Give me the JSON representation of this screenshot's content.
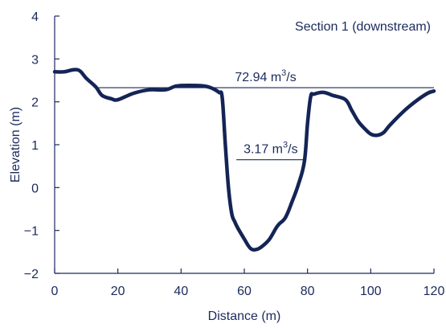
{
  "chart_data": {
    "type": "line",
    "title": "Section 1 (downstream)",
    "xlabel": "Distance (m)",
    "ylabel": "Elevation (m)",
    "xlim": [
      0,
      120
    ],
    "ylim": [
      -2,
      4
    ],
    "xticks": [
      0,
      20,
      40,
      60,
      80,
      100,
      120
    ],
    "yticks": [
      4,
      3,
      2,
      1,
      0,
      -1,
      -2
    ],
    "ytick_labels": [
      "4",
      "3",
      "2",
      "1",
      "0",
      "−1",
      "−2"
    ],
    "grid": false,
    "series": [
      {
        "x": [
          0,
          3,
          6,
          8,
          10,
          13,
          15,
          18,
          20,
          25,
          30,
          35,
          38,
          40,
          45,
          48,
          50,
          52,
          53,
          54,
          55,
          56,
          57,
          58,
          60,
          62,
          64,
          66,
          68,
          70,
          71,
          73,
          75,
          77,
          79,
          80,
          81,
          82,
          85,
          88,
          92,
          94,
          96,
          98,
          100,
          102,
          104,
          106,
          110,
          114,
          118,
          120
        ],
        "y": [
          2.7,
          2.7,
          2.75,
          2.72,
          2.55,
          2.35,
          2.15,
          2.07,
          2.05,
          2.2,
          2.28,
          2.28,
          2.36,
          2.38,
          2.38,
          2.36,
          2.31,
          2.22,
          2.1,
          1.0,
          0.0,
          -0.6,
          -0.8,
          -0.95,
          -1.2,
          -1.42,
          -1.44,
          -1.35,
          -1.2,
          -0.95,
          -0.85,
          -0.7,
          -0.35,
          0.05,
          0.6,
          1.5,
          2.12,
          2.18,
          2.22,
          2.15,
          2.05,
          1.8,
          1.55,
          1.38,
          1.25,
          1.22,
          1.28,
          1.45,
          1.75,
          2.0,
          2.2,
          2.25
        ]
      }
    ],
    "annotations": [
      {
        "label": "72.94 m",
        "exp": "3",
        "tail": "/s",
        "level": 2.33,
        "x_from": 13.5,
        "x_to": 120
      },
      {
        "label": "3.17 m",
        "exp": "3",
        "tail": "/s",
        "level": 0.65,
        "x_from": 57.5,
        "x_to": 79.2
      }
    ]
  }
}
